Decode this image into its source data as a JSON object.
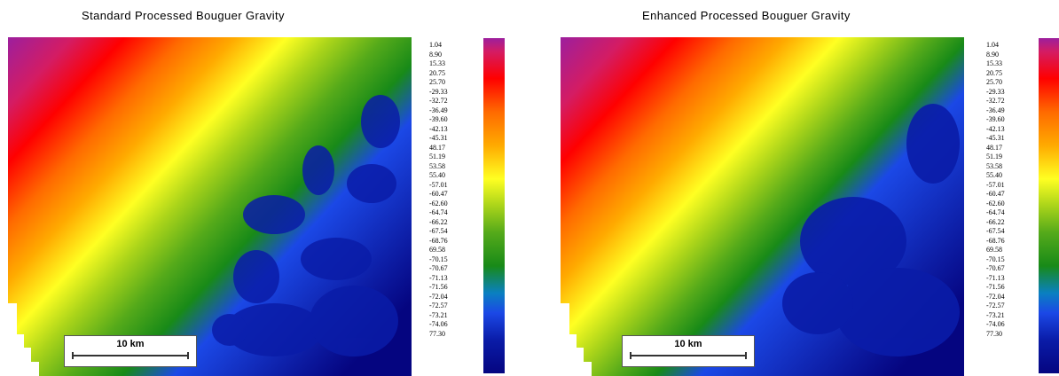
{
  "panels": [
    {
      "title": "Standard Processed Bouguer Gravity",
      "scale_label": "10 km"
    },
    {
      "title": "Enhanced Processed Bouguer Gravity",
      "scale_label": "10 km"
    }
  ],
  "legend": {
    "values": [
      "1.04",
      "8.90",
      "15.33",
      "20.75",
      "25.70",
      "-29.33",
      "-32.72",
      "-36.49",
      "-39.60",
      "-42.13",
      "-45.31",
      "48.17",
      "51.19",
      "53.58",
      "55.40",
      "-57.01",
      "-60.47",
      "-62.60",
      "-64.74",
      "-66.22",
      "-67.54",
      "-68.76",
      "69.58",
      "-70.15",
      "-70.67",
      "-71.13",
      "-71.56",
      "-72.04",
      "-72.57",
      "-73.21",
      "-74.06",
      "77.30"
    ],
    "colors": [
      "#9c1f9e",
      "#d41c63",
      "#ff0000",
      "#ff6a00",
      "#ffaa00",
      "#ffff22",
      "#aad41a",
      "#55aa1a",
      "#188a18",
      "#0a80c0",
      "#1b48e6",
      "#0a1ca8",
      "#050580"
    ]
  }
}
